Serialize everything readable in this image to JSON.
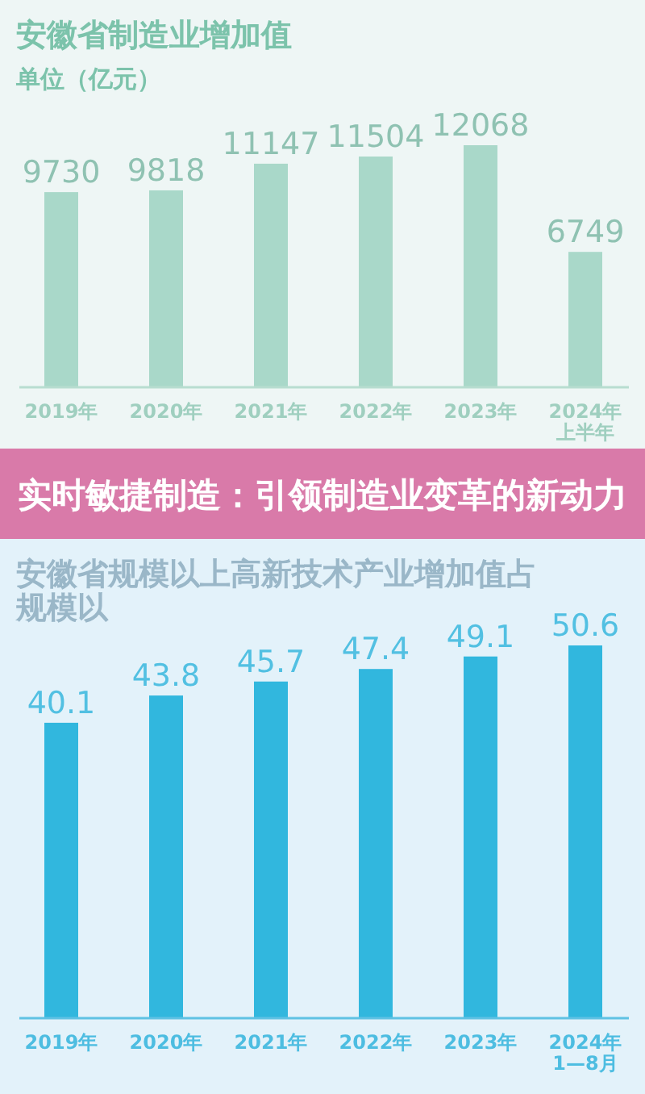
{
  "chart_data": [
    {
      "type": "bar",
      "title": "安徽省制造业增加值",
      "subtitle": "单位（亿元）",
      "categories": [
        "2019年",
        "2020年",
        "2021年",
        "2022年",
        "2023年",
        "2024年上半年"
      ],
      "values": [
        9730,
        9818,
        11147,
        11504,
        12068,
        6749
      ],
      "color": "#a9d8c9",
      "data_labels": true,
      "tick_labels": "x"
    },
    {
      "type": "other",
      "title": "实时敏捷制造：引领制造业变革的新动力"
    },
    {
      "type": "bar",
      "title": "安徽省规模以上高新技术产业增加值占规模以",
      "categories": [
        "2019年",
        "2020年",
        "2021年",
        "2022年",
        "2023年",
        "2024年1—8月"
      ],
      "values": [
        40.1,
        43.8,
        45.7,
        47.4,
        49.1,
        50.6
      ],
      "color": "#31b7de",
      "data_labels": true,
      "tick_labels": "x"
    }
  ]
}
